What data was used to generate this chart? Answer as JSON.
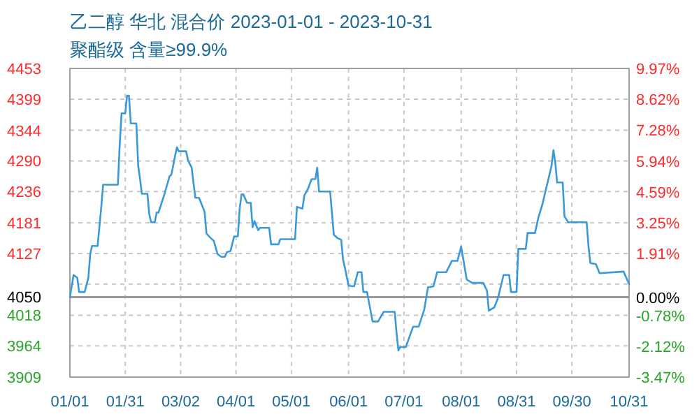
{
  "chart_data": {
    "type": "line",
    "title": "乙二醇 华北 混合价 2023-01-01 - 2023-10-31",
    "subtitle": "聚酯级 含量≥99.9%",
    "color": "#3a9ad9",
    "grid": true,
    "line_style": "solid",
    "marker": "none",
    "x": [
      "2023-01-01",
      "2023-01-03",
      "2023-01-05",
      "2023-01-06",
      "2023-01-09",
      "2023-01-11",
      "2023-01-12",
      "2023-01-13",
      "2023-01-16",
      "2023-01-18",
      "2023-01-19",
      "2023-01-27",
      "2023-01-28",
      "2023-01-29",
      "2023-01-31",
      "2023-02-01",
      "2023-02-02",
      "2023-02-03",
      "2023-02-06",
      "2023-02-07",
      "2023-02-08",
      "2023-02-09",
      "2023-02-12",
      "2023-02-13",
      "2023-02-14",
      "2023-02-16",
      "2023-02-17",
      "2023-02-18",
      "2023-02-21",
      "2023-02-24",
      "2023-02-25",
      "2023-02-27",
      "2023-02-28",
      "2023-03-01",
      "2023-03-05",
      "2023-03-06",
      "2023-03-08",
      "2023-03-09",
      "2023-03-10",
      "2023-03-12",
      "2023-03-15",
      "2023-03-16",
      "2023-03-18",
      "2023-03-20",
      "2023-03-22",
      "2023-03-24",
      "2023-03-26",
      "2023-03-27",
      "2023-03-29",
      "2023-03-31",
      "2023-04-02",
      "2023-04-03",
      "2023-04-04",
      "2023-04-05",
      "2023-04-07",
      "2023-04-09",
      "2023-04-10",
      "2023-04-11",
      "2023-04-13",
      "2023-04-14",
      "2023-04-19",
      "2023-04-20",
      "2023-04-24",
      "2023-04-25",
      "2023-05-03",
      "2023-05-04",
      "2023-05-07",
      "2023-05-08",
      "2023-05-10",
      "2023-05-12",
      "2023-05-14",
      "2023-05-15",
      "2023-05-16",
      "2023-05-22",
      "2023-05-24",
      "2023-05-26",
      "2023-05-28",
      "2023-05-29",
      "2023-05-30",
      "2023-06-01",
      "2023-06-04",
      "2023-06-06",
      "2023-06-08",
      "2023-06-09",
      "2023-06-11",
      "2023-06-14",
      "2023-06-17",
      "2023-06-20",
      "2023-06-26",
      "2023-06-27",
      "2023-06-28",
      "2023-06-29",
      "2023-07-02",
      "2023-07-06",
      "2023-07-09",
      "2023-07-12",
      "2023-07-14",
      "2023-07-17",
      "2023-07-19",
      "2023-07-24",
      "2023-07-27",
      "2023-07-30",
      "2023-08-01",
      "2023-08-02",
      "2023-08-04",
      "2023-08-07",
      "2023-08-13",
      "2023-08-15",
      "2023-08-16",
      "2023-08-19",
      "2023-08-21",
      "2023-08-24",
      "2023-08-27",
      "2023-08-28",
      "2023-08-31",
      "2023-09-01",
      "2023-09-05",
      "2023-09-06",
      "2023-09-10",
      "2023-09-12",
      "2023-09-14",
      "2023-09-16",
      "2023-09-17",
      "2023-09-19",
      "2023-09-20",
      "2023-09-21",
      "2023-09-22",
      "2023-09-25",
      "2023-09-26",
      "2023-09-28",
      "2023-10-08",
      "2023-10-09",
      "2023-10-10",
      "2023-10-13",
      "2023-10-15",
      "2023-10-28",
      "2023-10-31"
    ],
    "values": [
      4050,
      4089,
      4084,
      4059,
      4059,
      4084,
      4126,
      4140,
      4140,
      4209,
      4248,
      4248,
      4319,
      4374,
      4374,
      4405,
      4405,
      4356,
      4356,
      4282,
      4258,
      4232,
      4232,
      4196,
      4182,
      4182,
      4199,
      4199,
      4229,
      4263,
      4266,
      4299,
      4314,
      4307,
      4307,
      4291,
      4278,
      4250,
      4225,
      4225,
      4200,
      4162,
      4155,
      4149,
      4126,
      4121,
      4121,
      4129,
      4131,
      4157,
      4157,
      4206,
      4231,
      4231,
      4216,
      4216,
      4173,
      4184,
      4168,
      4172,
      4172,
      4143,
      4143,
      4152,
      4152,
      4209,
      4206,
      4229,
      4241,
      4258,
      4258,
      4278,
      4236,
      4236,
      4160,
      4154,
      4151,
      4116,
      4102,
      4070,
      4069,
      4094,
      4094,
      4059,
      4059,
      4007,
      4007,
      4024,
      4024,
      3987,
      3956,
      3962,
      3962,
      3998,
      3998,
      4028,
      4067,
      4069,
      4094,
      4094,
      4114,
      4114,
      4139,
      4120,
      4081,
      4075,
      4075,
      4061,
      4026,
      4032,
      4049,
      4089,
      4089,
      4059,
      4059,
      4135,
      4135,
      4163,
      4163,
      4192,
      4213,
      4241,
      4254,
      4282,
      4309,
      4287,
      4252,
      4252,
      4192,
      4182,
      4182,
      4139,
      4110,
      4108,
      4092,
      4095,
      4073
    ],
    "xlim": [
      "2023-01-01",
      "2023-10-31"
    ],
    "xticks": [
      {
        "value": "2023-01-01",
        "label": "01/01"
      },
      {
        "value": "2023-01-31",
        "label": "01/31"
      },
      {
        "value": "2023-03-02",
        "label": "03/02"
      },
      {
        "value": "2023-04-01",
        "label": "04/01"
      },
      {
        "value": "2023-05-01",
        "label": "05/01"
      },
      {
        "value": "2023-06-01",
        "label": "06/01"
      },
      {
        "value": "2023-07-01",
        "label": "07/01"
      },
      {
        "value": "2023-08-01",
        "label": "08/01"
      },
      {
        "value": "2023-08-31",
        "label": "08/31"
      },
      {
        "value": "2023-09-30",
        "label": "09/30"
      },
      {
        "value": "2023-10-31",
        "label": "10/31"
      }
    ],
    "ylim": [
      3909,
      4453
    ],
    "yticks": [
      3909,
      3964,
      4018,
      4050,
      {
        "value": 4073,
        "label": null
      },
      4127,
      4181,
      4236,
      4290,
      4344,
      4399,
      4453
    ],
    "y2lim": [
      -3.47,
      9.97
    ],
    "y2ticks": [
      {
        "value": -3.47,
        "label": "-3.47%"
      },
      {
        "value": -2.12,
        "label": "-2.12%"
      },
      {
        "value": -0.78,
        "label": "-0.78%"
      },
      {
        "value": 0,
        "label": "0.00%"
      },
      {
        "value": 1.91,
        "label": "1.91%"
      },
      {
        "value": 3.25,
        "label": "3.25%"
      },
      {
        "value": 4.59,
        "label": "4.59%"
      },
      {
        "value": 5.94,
        "label": "5.94%"
      },
      {
        "value": 7.28,
        "label": "7.28%"
      },
      {
        "value": 8.62,
        "label": "8.62%"
      },
      {
        "value": 9.97,
        "label": "9.97%"
      }
    ],
    "ref_lines": [
      {
        "axis": "y",
        "value": 4050,
        "color": "#999999",
        "line_style": "solid"
      }
    ]
  }
}
